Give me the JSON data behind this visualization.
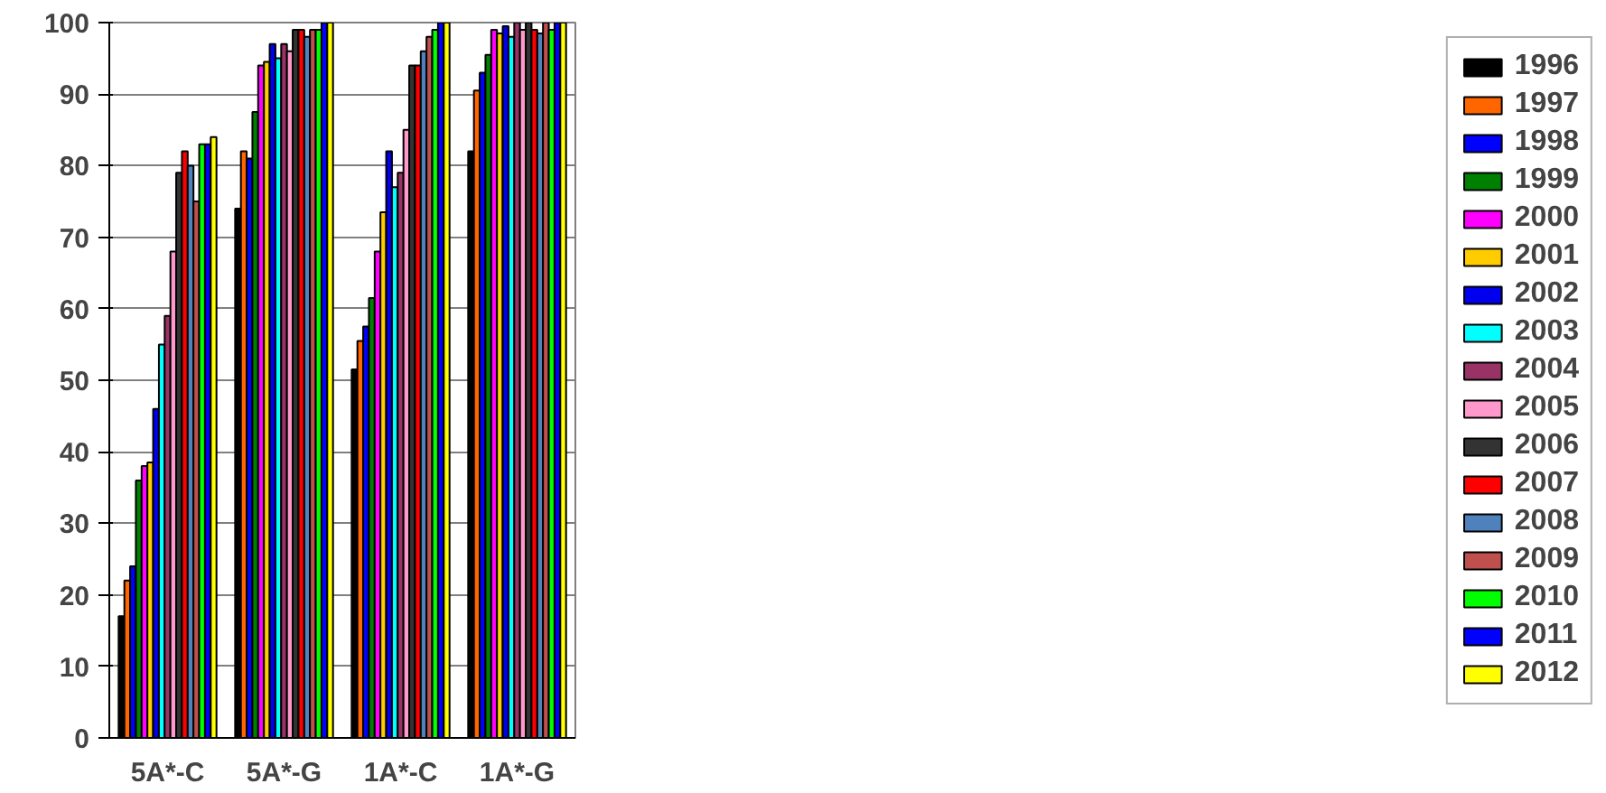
{
  "chart_data": {
    "type": "bar",
    "categories": [
      "5A*-C",
      "5A*-G",
      "1A*-C",
      "1A*-G"
    ],
    "ylim": [
      0,
      100
    ],
    "yticks": [
      0,
      10,
      20,
      30,
      40,
      50,
      60,
      70,
      80,
      90,
      100
    ],
    "grid": "y",
    "legend": "right",
    "series": [
      {
        "name": "1996",
        "color": "#000000",
        "values": [
          17,
          74,
          51.5,
          82
        ]
      },
      {
        "name": "1997",
        "color": "#ff6600",
        "values": [
          22,
          82,
          55.5,
          90.5
        ]
      },
      {
        "name": "1998",
        "color": "#0000ff",
        "values": [
          24,
          81,
          57.5,
          93
        ]
      },
      {
        "name": "1999",
        "color": "#008000",
        "values": [
          36,
          87.5,
          61.5,
          95.5
        ]
      },
      {
        "name": "2000",
        "color": "#ff00ff",
        "values": [
          38,
          94,
          68,
          99
        ]
      },
      {
        "name": "2001",
        "color": "#ffcc00",
        "values": [
          38.5,
          94.5,
          73.5,
          98.5
        ]
      },
      {
        "name": "2002",
        "color": "#0000ee",
        "values": [
          46,
          97,
          82,
          99.5
        ]
      },
      {
        "name": "2003",
        "color": "#00ffff",
        "values": [
          55,
          95,
          77,
          98
        ]
      },
      {
        "name": "2004",
        "color": "#993366",
        "values": [
          59,
          97,
          79,
          100
        ]
      },
      {
        "name": "2005",
        "color": "#ff99cc",
        "values": [
          68,
          96,
          85,
          99
        ]
      },
      {
        "name": "2006",
        "color": "#333333",
        "values": [
          79,
          99,
          94,
          100
        ]
      },
      {
        "name": "2007",
        "color": "#ff0000",
        "values": [
          82,
          99,
          94,
          99
        ]
      },
      {
        "name": "2008",
        "color": "#4f81bd",
        "values": [
          80,
          98,
          96,
          98.5
        ]
      },
      {
        "name": "2009",
        "color": "#c0504d",
        "values": [
          75,
          99,
          98,
          100
        ]
      },
      {
        "name": "2010",
        "color": "#00ff00",
        "values": [
          83,
          99,
          99,
          99
        ]
      },
      {
        "name": "2011",
        "color": "#0000fe",
        "values": [
          83,
          100,
          100,
          100
        ]
      },
      {
        "name": "2012",
        "color": "#ffff00",
        "values": [
          84,
          100,
          100,
          100
        ]
      }
    ]
  }
}
